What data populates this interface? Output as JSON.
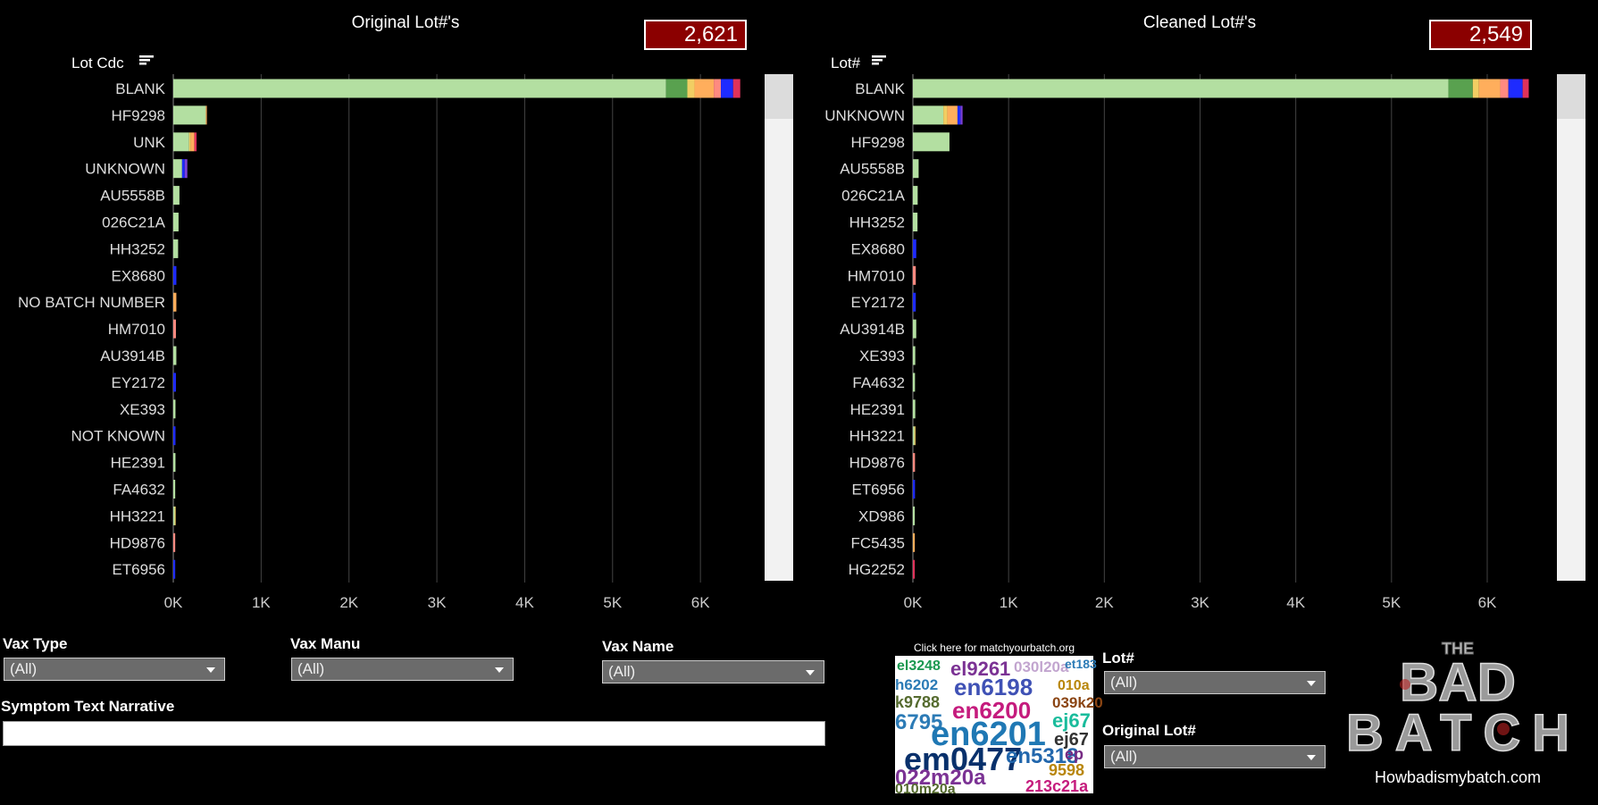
{
  "chart_data": [
    {
      "type": "bar",
      "orientation": "horizontal",
      "stacked": true,
      "title": "Original Lot#'s",
      "total_label": "2,621",
      "y_label": "Lot Cdc",
      "categories": [
        "BLANK",
        "HF9298",
        "UNK",
        "UNKNOWN",
        "AU5558B",
        "026C21A",
        "HH3252",
        "EX8680",
        "NO BATCH NUMBER",
        "HM7010",
        "AU3914B",
        "EY2172",
        "XE393",
        "NOT KNOWN",
        "HE2391",
        "FA4632",
        "HH3221",
        "HD9876",
        "ET6956"
      ],
      "series": [
        {
          "color": "#b3dfa1",
          "values": [
            5608,
            370,
            180,
            100,
            70,
            60,
            55,
            0,
            0,
            0,
            35,
            0,
            25,
            0,
            25,
            22,
            15,
            0,
            0
          ]
        },
        {
          "color": "#59a14f",
          "values": [
            243,
            0,
            0,
            0,
            0,
            0,
            0,
            0,
            0,
            0,
            0,
            0,
            0,
            0,
            0,
            0,
            0,
            0,
            0
          ]
        },
        {
          "color": "#f1ce63",
          "values": [
            81,
            0,
            20,
            0,
            0,
            0,
            0,
            0,
            0,
            0,
            0,
            0,
            0,
            0,
            0,
            0,
            12,
            0,
            0
          ]
        },
        {
          "color": "#ffae5c",
          "values": [
            220,
            12,
            40,
            0,
            0,
            0,
            0,
            0,
            35,
            0,
            0,
            0,
            0,
            0,
            0,
            0,
            0,
            0,
            0
          ]
        },
        {
          "color": "#ff8a80",
          "values": [
            81,
            0,
            0,
            0,
            0,
            0,
            0,
            0,
            0,
            30,
            0,
            0,
            0,
            0,
            0,
            0,
            0,
            22,
            0
          ]
        },
        {
          "color": "#1e2bff",
          "values": [
            139,
            0,
            0,
            30,
            0,
            0,
            0,
            35,
            0,
            0,
            0,
            30,
            0,
            25,
            0,
            0,
            0,
            0,
            22
          ]
        },
        {
          "color": "#7c3fd6",
          "values": [
            0,
            0,
            0,
            30,
            0,
            0,
            0,
            0,
            0,
            0,
            0,
            0,
            0,
            0,
            0,
            0,
            0,
            0,
            0
          ]
        },
        {
          "color": "#e0325a",
          "values": [
            81,
            0,
            25,
            0,
            0,
            0,
            0,
            0,
            0,
            0,
            0,
            0,
            0,
            0,
            0,
            0,
            0,
            0,
            0
          ]
        }
      ],
      "xlim": [
        0,
        6700
      ],
      "xticks": [
        {
          "value": 0,
          "label": "0K"
        },
        {
          "value": 1000,
          "label": "1K"
        },
        {
          "value": 2000,
          "label": "2K"
        },
        {
          "value": 3000,
          "label": "3K"
        },
        {
          "value": 4000,
          "label": "4K"
        },
        {
          "value": 5000,
          "label": "5K"
        },
        {
          "value": 6000,
          "label": "6K"
        }
      ],
      "grid": true
    },
    {
      "type": "bar",
      "orientation": "horizontal",
      "stacked": true,
      "title": "Cleaned Lot#'s",
      "total_label": "2,549",
      "y_label": "Lot#",
      "categories": [
        "BLANK",
        "UNKNOWN",
        "HF9298",
        "AU5558B",
        "026C21A",
        "HH3252",
        "EX8680",
        "HM7010",
        "EY2172",
        "AU3914B",
        "XE393",
        "FA4632",
        "HE2391",
        "HH3221",
        "HD9876",
        "ET6956",
        "XD986",
        "FC5435",
        "HG2252"
      ],
      "series": [
        {
          "color": "#b3dfa1",
          "values": [
            5594,
            318,
            382,
            60,
            50,
            48,
            0,
            0,
            0,
            35,
            25,
            22,
            25,
            15,
            0,
            0,
            20,
            0,
            0
          ]
        },
        {
          "color": "#59a14f",
          "values": [
            255,
            0,
            0,
            0,
            0,
            0,
            0,
            0,
            0,
            0,
            0,
            0,
            0,
            0,
            0,
            0,
            0,
            0,
            0
          ]
        },
        {
          "color": "#f1ce63",
          "values": [
            64,
            42,
            0,
            0,
            0,
            0,
            0,
            0,
            0,
            0,
            0,
            0,
            0,
            12,
            0,
            0,
            0,
            0,
            0
          ]
        },
        {
          "color": "#ffae5c",
          "values": [
            223,
            106,
            0,
            0,
            0,
            0,
            0,
            0,
            0,
            0,
            0,
            0,
            0,
            0,
            0,
            0,
            0,
            20,
            0
          ]
        },
        {
          "color": "#ff8a80",
          "values": [
            85,
            0,
            0,
            0,
            0,
            0,
            0,
            30,
            0,
            0,
            0,
            0,
            0,
            0,
            22,
            0,
            0,
            0,
            0
          ]
        },
        {
          "color": "#1e2bff",
          "values": [
            149,
            32,
            0,
            0,
            0,
            0,
            35,
            0,
            30,
            0,
            0,
            0,
            0,
            0,
            0,
            22,
            0,
            0,
            0
          ]
        },
        {
          "color": "#7c3fd6",
          "values": [
            0,
            21,
            0,
            0,
            0,
            0,
            0,
            0,
            0,
            0,
            0,
            0,
            0,
            0,
            0,
            0,
            0,
            0,
            0
          ]
        },
        {
          "color": "#e0325a",
          "values": [
            64,
            0,
            0,
            0,
            0,
            0,
            0,
            0,
            0,
            0,
            0,
            0,
            0,
            0,
            0,
            0,
            0,
            0,
            20
          ]
        }
      ],
      "xlim": [
        0,
        6700
      ],
      "xticks": [
        {
          "value": 0,
          "label": "0K"
        },
        {
          "value": 1000,
          "label": "1K"
        },
        {
          "value": 2000,
          "label": "2K"
        },
        {
          "value": 3000,
          "label": "3K"
        },
        {
          "value": 4000,
          "label": "4K"
        },
        {
          "value": 5000,
          "label": "5K"
        },
        {
          "value": 6000,
          "label": "6K"
        }
      ],
      "grid": true
    }
  ],
  "filters": {
    "vax_type": {
      "label": "Vax Type",
      "value": "(All)"
    },
    "vax_manu": {
      "label": "Vax Manu",
      "value": "(All)"
    },
    "vax_name": {
      "label": "Vax Name",
      "value": "(All)"
    },
    "symptom": {
      "label": "Symptom Text Narrative"
    },
    "lot": {
      "label": "Lot#",
      "value": "(All)"
    },
    "original_lot": {
      "label": "Original Lot#",
      "value": "(All)"
    }
  },
  "wordcloud": {
    "caption": "Click here for matchyourbatch.org",
    "words": [
      "el3248",
      "el9261",
      "030l20a",
      "et183",
      "h6202",
      "en6198",
      "010a",
      "k9788",
      "039k20",
      "6795",
      "en6200",
      "ej67",
      "en6201",
      "ej67",
      "em0477",
      "en5318",
      "ep",
      "022m20a",
      "9598",
      "213c21a",
      "010m20a"
    ]
  },
  "logo": {
    "top": "THE",
    "middle": "BAD",
    "bottom": "BATCH",
    "site": "Howbadismybatch.com"
  }
}
